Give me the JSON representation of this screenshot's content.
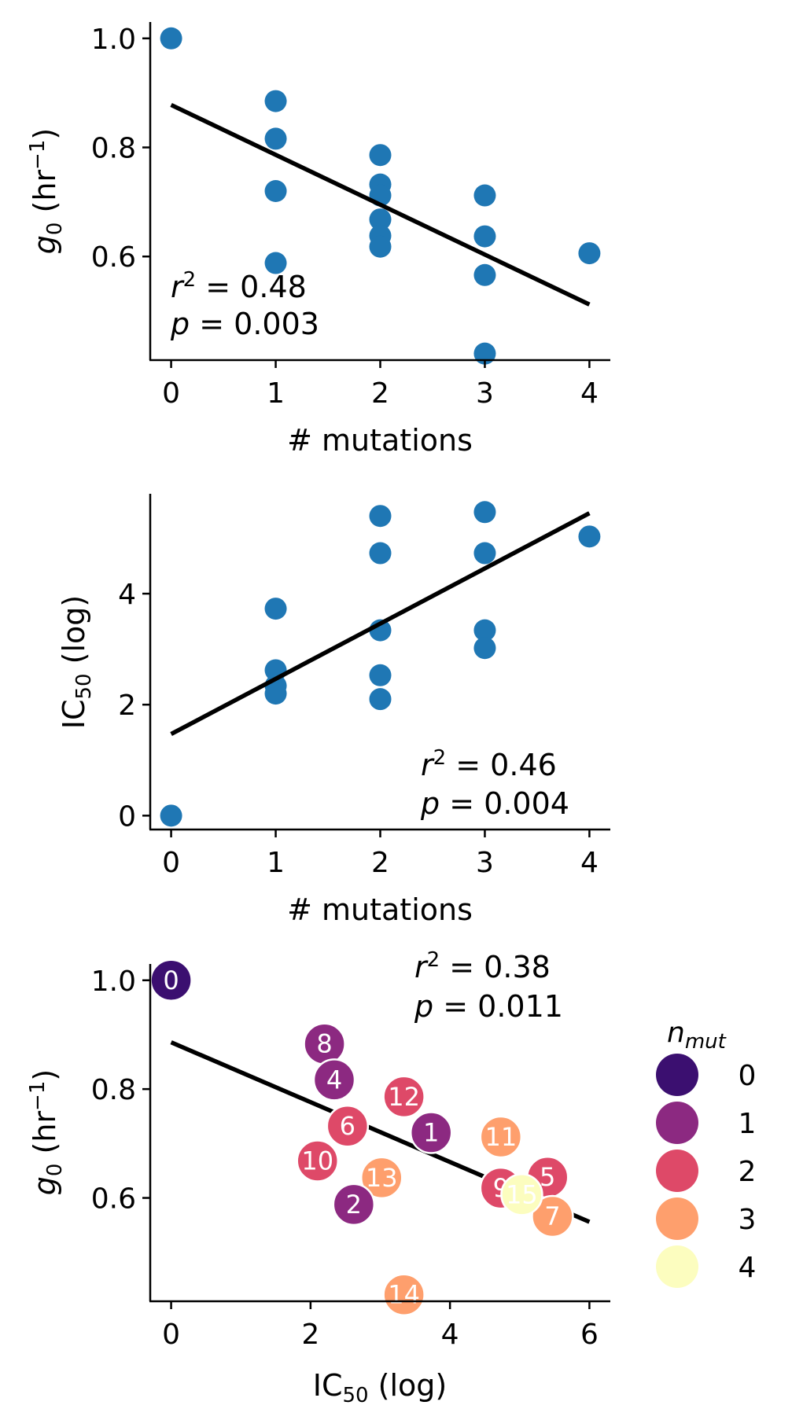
{
  "chart_data": [
    {
      "type": "scatter",
      "xlabel": "# mutations",
      "ylabel": "g0 (hr−1)",
      "xlim": [
        -0.2,
        4.2
      ],
      "ylim": [
        0.41,
        1.03
      ],
      "xticks": [
        0,
        1,
        2,
        3,
        4
      ],
      "yticks": [
        0.6,
        0.8,
        1.0
      ],
      "xtick_labels": [
        "0",
        "1",
        "2",
        "3",
        "4"
      ],
      "ytick_labels": [
        "0.6",
        "0.8",
        "1.0"
      ],
      "point_color": "#1f77b4",
      "points": [
        {
          "x": 0,
          "y": 1.0
        },
        {
          "x": 1,
          "y": 0.885
        },
        {
          "x": 1,
          "y": 0.816
        },
        {
          "x": 1,
          "y": 0.72
        },
        {
          "x": 1,
          "y": 0.588
        },
        {
          "x": 2,
          "y": 0.786
        },
        {
          "x": 2,
          "y": 0.732
        },
        {
          "x": 2,
          "y": 0.712
        },
        {
          "x": 2,
          "y": 0.668
        },
        {
          "x": 2,
          "y": 0.638
        },
        {
          "x": 2,
          "y": 0.618
        },
        {
          "x": 3,
          "y": 0.712
        },
        {
          "x": 3,
          "y": 0.637
        },
        {
          "x": 3,
          "y": 0.566
        },
        {
          "x": 3,
          "y": 0.422
        },
        {
          "x": 4,
          "y": 0.606
        }
      ],
      "fit_line": {
        "x": [
          0,
          4
        ],
        "y": [
          0.878,
          0.512
        ],
        "color": "#000000"
      },
      "annotations": {
        "r2_value": "= 0.48",
        "p_value": "= 0.003"
      }
    },
    {
      "type": "scatter",
      "xlabel": "# mutations",
      "ylabel": "IC50 (log)",
      "xlim": [
        -0.2,
        4.2
      ],
      "ylim": [
        -0.25,
        5.8
      ],
      "xticks": [
        0,
        1,
        2,
        3,
        4
      ],
      "yticks": [
        0,
        2,
        4
      ],
      "xtick_labels": [
        "0",
        "1",
        "2",
        "3",
        "4"
      ],
      "ytick_labels": [
        "0",
        "2",
        "4"
      ],
      "point_color": "#1f77b4",
      "points": [
        {
          "x": 0,
          "y": 0.0
        },
        {
          "x": 1,
          "y": 3.73
        },
        {
          "x": 1,
          "y": 2.62
        },
        {
          "x": 1,
          "y": 2.34
        },
        {
          "x": 1,
          "y": 2.2
        },
        {
          "x": 2,
          "y": 5.4
        },
        {
          "x": 2,
          "y": 4.73
        },
        {
          "x": 2,
          "y": 3.34
        },
        {
          "x": 2,
          "y": 2.53
        },
        {
          "x": 2,
          "y": 2.1
        },
        {
          "x": 3,
          "y": 5.47
        },
        {
          "x": 3,
          "y": 4.73
        },
        {
          "x": 3,
          "y": 3.34
        },
        {
          "x": 3,
          "y": 3.02
        },
        {
          "x": 4,
          "y": 5.03
        }
      ],
      "fit_line": {
        "x": [
          0,
          4
        ],
        "y": [
          1.47,
          5.45
        ],
        "color": "#000000"
      },
      "annotations": {
        "r2_value": "= 0.46",
        "p_value": "= 0.004"
      }
    },
    {
      "type": "scatter",
      "xlabel": "IC50 (log)",
      "ylabel": "g0 (hr−1)",
      "xlim": [
        -0.3,
        6.3
      ],
      "ylim": [
        0.41,
        1.03
      ],
      "xticks": [
        0,
        2,
        4,
        6
      ],
      "yticks": [
        0.6,
        0.8,
        1.0
      ],
      "xtick_labels": [
        "0",
        "2",
        "4",
        "6"
      ],
      "ytick_labels": [
        "0.6",
        "0.8",
        "1.0"
      ],
      "points": [
        {
          "label": "0",
          "x": 0.0,
          "y": 1.0,
          "nmut": 0
        },
        {
          "label": "8",
          "x": 2.2,
          "y": 0.883,
          "nmut": 1
        },
        {
          "label": "4",
          "x": 2.34,
          "y": 0.817,
          "nmut": 1
        },
        {
          "label": "12",
          "x": 3.34,
          "y": 0.786,
          "nmut": 2
        },
        {
          "label": "1",
          "x": 3.73,
          "y": 0.72,
          "nmut": 1
        },
        {
          "label": "6",
          "x": 2.53,
          "y": 0.732,
          "nmut": 2
        },
        {
          "label": "10",
          "x": 2.1,
          "y": 0.668,
          "nmut": 2
        },
        {
          "label": "13",
          "x": 3.02,
          "y": 0.637,
          "nmut": 3
        },
        {
          "label": "2",
          "x": 2.62,
          "y": 0.588,
          "nmut": 1
        },
        {
          "label": "11",
          "x": 4.73,
          "y": 0.712,
          "nmut": 3
        },
        {
          "label": "9",
          "x": 4.73,
          "y": 0.618,
          "nmut": 2
        },
        {
          "label": "5",
          "x": 5.4,
          "y": 0.638,
          "nmut": 2
        },
        {
          "label": "7",
          "x": 5.47,
          "y": 0.566,
          "nmut": 3
        },
        {
          "label": "15",
          "x": 5.03,
          "y": 0.606,
          "nmut": 4
        },
        {
          "label": "14",
          "x": 3.34,
          "y": 0.422,
          "nmut": 3
        }
      ],
      "fit_line": {
        "x": [
          0,
          6
        ],
        "y": [
          0.886,
          0.556
        ],
        "color": "#000000"
      },
      "annotations": {
        "r2_value": "= 0.38",
        "p_value": "= 0.011"
      },
      "legend": {
        "title": "n",
        "title_subscript": "mut",
        "placement": "right",
        "items": [
          {
            "label": "0",
            "color": "#3b0f70"
          },
          {
            "label": "1",
            "color": "#8c2981"
          },
          {
            "label": "2",
            "color": "#de4968"
          },
          {
            "label": "3",
            "color": "#fe9f6d"
          },
          {
            "label": "4",
            "color": "#fcfdbf"
          }
        ]
      }
    }
  ]
}
